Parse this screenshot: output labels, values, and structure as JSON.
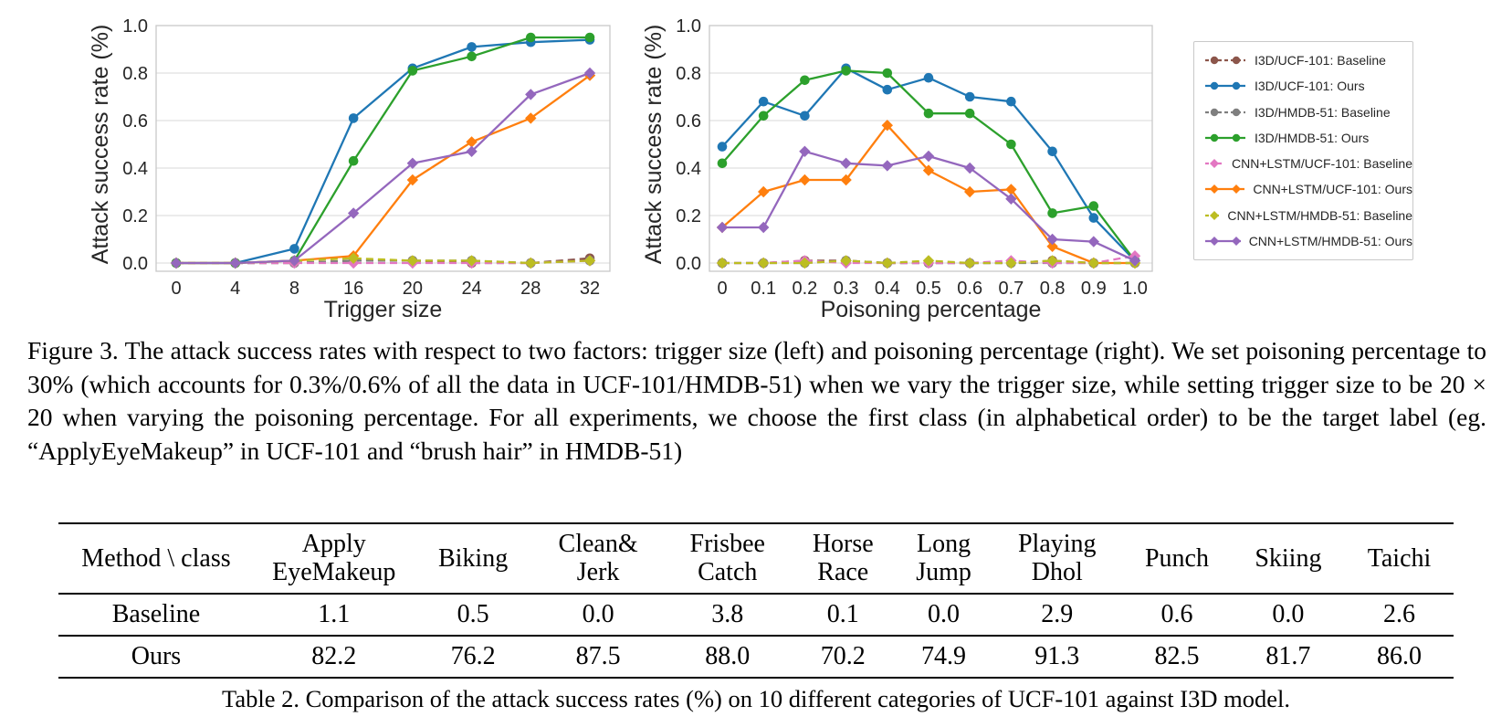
{
  "figure": {
    "caption": "Figure 3. The attack success rates with respect to two factors: trigger size (left) and poisoning percentage (right). We set poisoning percentage to 30% (which accounts for 0.3%/0.6% of all the data in UCF-101/HMDB-51) when we vary the trigger size, while setting trigger size to be 20 × 20 when varying the poisoning percentage. For all experiments, we choose the first class (in alphabetical order) to be the target label (eg. “ApplyEyeMakeup” in UCF-101 and “brush hair” in HMDB-51)"
  },
  "chart_data": [
    {
      "type": "line",
      "title": "",
      "xlabel": "Trigger size",
      "ylabel": "Attack success rate (%)",
      "ylim": [
        0,
        1.0
      ],
      "grid": "horizontal",
      "legend_position": "outside-right-shared",
      "yticks": [
        0.0,
        0.2,
        0.4,
        0.6,
        0.8,
        1.0
      ],
      "ytick_labels": [
        "0.0",
        "0.2",
        "0.4",
        "0.6",
        "0.8",
        "1.0"
      ],
      "categories": [
        "0",
        "4",
        "8",
        "16",
        "20",
        "24",
        "28",
        "32"
      ],
      "series": [
        {
          "name": "I3D/UCF-101: Baseline",
          "color": "#8c564b",
          "style": "dashed",
          "marker": "circle",
          "values": [
            0.0,
            0.0,
            0.0,
            0.01,
            0.01,
            0.0,
            0.0,
            0.02
          ]
        },
        {
          "name": "I3D/UCF-101: Ours",
          "color": "#1f77b4",
          "style": "solid",
          "marker": "circle",
          "values": [
            0.0,
            0.0,
            0.06,
            0.61,
            0.82,
            0.91,
            0.93,
            0.94
          ]
        },
        {
          "name": "I3D/HMDB-51: Baseline",
          "color": "#7f7f7f",
          "style": "dashed",
          "marker": "circle",
          "values": [
            0.0,
            0.0,
            0.0,
            0.01,
            0.01,
            0.01,
            0.0,
            0.01
          ]
        },
        {
          "name": "I3D/HMDB-51: Ours",
          "color": "#2ca02c",
          "style": "solid",
          "marker": "circle",
          "values": [
            0.0,
            0.0,
            0.01,
            0.43,
            0.81,
            0.87,
            0.95,
            0.95
          ]
        },
        {
          "name": "CNN+LSTM/UCF-101: Baseline",
          "color": "#e377c2",
          "style": "dashed",
          "marker": "diamond",
          "values": [
            0.0,
            0.0,
            0.0,
            0.0,
            0.0,
            0.0,
            0.0,
            0.01
          ]
        },
        {
          "name": "CNN+LSTM/UCF-101: Ours",
          "color": "#ff7f0e",
          "style": "solid",
          "marker": "diamond",
          "values": [
            0.0,
            0.0,
            0.01,
            0.03,
            0.35,
            0.51,
            0.61,
            0.79
          ]
        },
        {
          "name": "CNN+LSTM/HMDB-51: Baseline",
          "color": "#bcbd22",
          "style": "dashed",
          "marker": "diamond",
          "values": [
            0.0,
            0.0,
            0.01,
            0.02,
            0.01,
            0.01,
            0.0,
            0.01
          ]
        },
        {
          "name": "CNN+LSTM/HMDB-51: Ours",
          "color": "#9467bd",
          "style": "solid",
          "marker": "diamond",
          "values": [
            0.0,
            0.0,
            0.01,
            0.21,
            0.42,
            0.47,
            0.71,
            0.8
          ]
        }
      ]
    },
    {
      "type": "line",
      "title": "",
      "xlabel": "Poisoning percentage",
      "ylabel": "Attack success rate (%)",
      "ylim": [
        0,
        1.0
      ],
      "grid": "horizontal",
      "legend_position": "outside-right-shared",
      "yticks": [
        0.0,
        0.2,
        0.4,
        0.6,
        0.8,
        1.0
      ],
      "ytick_labels": [
        "0.0",
        "0.2",
        "0.4",
        "0.6",
        "0.8",
        "1.0"
      ],
      "categories": [
        "0",
        "0.1",
        "0.2",
        "0.3",
        "0.4",
        "0.5",
        "0.6",
        "0.7",
        "0.8",
        "0.9",
        "1.0"
      ],
      "series": [
        {
          "name": "I3D/UCF-101: Baseline",
          "color": "#8c564b",
          "style": "dashed",
          "marker": "circle",
          "values": [
            0.0,
            0.0,
            0.01,
            0.01,
            0.0,
            0.0,
            0.0,
            0.0,
            0.01,
            0.0,
            0.0
          ]
        },
        {
          "name": "I3D/UCF-101: Ours",
          "color": "#1f77b4",
          "style": "solid",
          "marker": "circle",
          "values": [
            0.49,
            0.68,
            0.62,
            0.82,
            0.73,
            0.78,
            0.7,
            0.68,
            0.47,
            0.19,
            0.01
          ]
        },
        {
          "name": "I3D/HMDB-51: Baseline",
          "color": "#7f7f7f",
          "style": "dashed",
          "marker": "circle",
          "values": [
            0.0,
            0.0,
            0.0,
            0.01,
            0.0,
            0.0,
            0.0,
            0.0,
            0.0,
            0.0,
            0.0
          ]
        },
        {
          "name": "I3D/HMDB-51: Ours",
          "color": "#2ca02c",
          "style": "solid",
          "marker": "circle",
          "values": [
            0.42,
            0.62,
            0.77,
            0.81,
            0.8,
            0.63,
            0.63,
            0.5,
            0.21,
            0.24,
            0.01
          ]
        },
        {
          "name": "CNN+LSTM/UCF-101: Baseline",
          "color": "#e377c2",
          "style": "dashed",
          "marker": "diamond",
          "values": [
            0.0,
            0.0,
            0.01,
            0.0,
            0.0,
            0.0,
            0.0,
            0.01,
            0.0,
            0.0,
            0.03
          ]
        },
        {
          "name": "CNN+LSTM/UCF-101: Ours",
          "color": "#ff7f0e",
          "style": "solid",
          "marker": "diamond",
          "values": [
            0.15,
            0.3,
            0.35,
            0.35,
            0.58,
            0.39,
            0.3,
            0.31,
            0.07,
            0.0,
            0.0
          ]
        },
        {
          "name": "CNN+LSTM/HMDB-51: Baseline",
          "color": "#bcbd22",
          "style": "dashed",
          "marker": "diamond",
          "values": [
            0.0,
            0.0,
            0.0,
            0.01,
            0.0,
            0.01,
            0.0,
            0.0,
            0.01,
            0.0,
            0.0
          ]
        },
        {
          "name": "CNN+LSTM/HMDB-51: Ours",
          "color": "#9467bd",
          "style": "solid",
          "marker": "diamond",
          "values": [
            0.15,
            0.15,
            0.47,
            0.42,
            0.41,
            0.45,
            0.4,
            0.27,
            0.1,
            0.09,
            0.01
          ]
        }
      ]
    }
  ],
  "legend": {
    "entries": [
      "I3D/UCF-101: Baseline",
      "I3D/UCF-101: Ours",
      "I3D/HMDB-51: Baseline",
      "I3D/HMDB-51: Ours",
      "CNN+LSTM/UCF-101: Baseline",
      "CNN+LSTM/UCF-101: Ours",
      "CNN+LSTM/HMDB-51: Baseline",
      "CNN+LSTM/HMDB-51: Ours"
    ]
  },
  "table": {
    "headers": [
      "Method \\ class",
      "Apply\nEyeMakeup",
      "Biking",
      "Clean&\nJerk",
      "Frisbee\nCatch",
      "Horse\nRace",
      "Long\nJump",
      "Playing\nDhol",
      "Punch",
      "Skiing",
      "Taichi"
    ],
    "rows": [
      {
        "label": "Baseline",
        "values": [
          "1.1",
          "0.5",
          "0.0",
          "3.8",
          "0.1",
          "0.0",
          "2.9",
          "0.6",
          "0.0",
          "2.6"
        ]
      },
      {
        "label": "Ours",
        "values": [
          "82.2",
          "76.2",
          "87.5",
          "88.0",
          "70.2",
          "74.9",
          "91.3",
          "82.5",
          "81.7",
          "86.0"
        ]
      }
    ],
    "caption": "Table 2. Comparison of the attack success rates (%) on 10 different categories of UCF-101 against I3D model."
  }
}
